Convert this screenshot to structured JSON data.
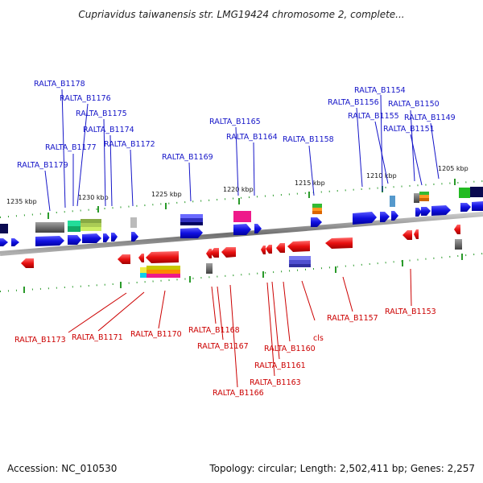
{
  "title": "Cupriavidus taiwanensis str. LMG19424 chromosome 2, complete...",
  "footer": {
    "accession": "Accession: NC_010530",
    "topology": "Topology: circular; Length: 2,502,411 bp; Genes: 2,257"
  },
  "ticks": [
    "1235 kbp",
    "1230 kbp",
    "1225 kbp",
    "1220 kbp",
    "1215 kbp",
    "1210 kbp",
    "1205 kbp"
  ],
  "forward_labels": [
    "RALTA_B1178",
    "RALTA_B1176",
    "RALTA_B1175",
    "RALTA_B1174",
    "RALTA_B1172",
    "RALTA_B1177",
    "RALTA_B1179",
    "RALTA_B1169",
    "RALTA_B1165",
    "RALTA_B1164",
    "RALTA_B1158",
    "RALTA_B1154",
    "RALTA_B1156",
    "RALTA_B1150",
    "RALTA_B1155",
    "RALTA_B1149",
    "RALTA_B1151"
  ],
  "reverse_labels": [
    "RALTA_B1173",
    "RALTA_B1171",
    "RALTA_B1170",
    "RALTA_B1168",
    "RALTA_B1167",
    "cls",
    "RALTA_B1160",
    "RALTA_B1161",
    "RALTA_B1163",
    "RALTA_B1166",
    "RALTA_B1157",
    "RALTA_B1153"
  ],
  "colors": {
    "forward": "#1010e8",
    "reverse": "#e01010",
    "backbone": "#8a8a8a",
    "tick": "#2a9a2a"
  }
}
